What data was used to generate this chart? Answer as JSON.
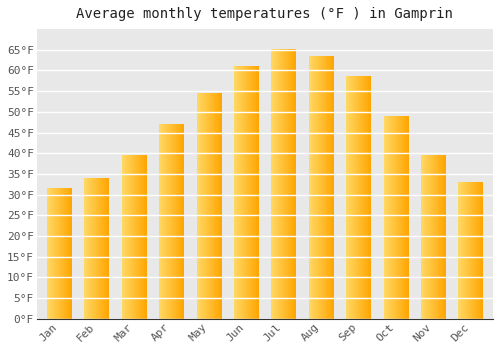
{
  "title": "Average monthly temperatures (°F ) in Gamprin",
  "months": [
    "Jan",
    "Feb",
    "Mar",
    "Apr",
    "May",
    "Jun",
    "Jul",
    "Aug",
    "Sep",
    "Oct",
    "Nov",
    "Dec"
  ],
  "values": [
    31.5,
    34.0,
    39.5,
    47.0,
    54.5,
    61.0,
    65.0,
    63.5,
    58.5,
    49.0,
    39.5,
    33.0
  ],
  "bar_color_left": "#FFD966",
  "bar_color_right": "#FFA500",
  "ylim": [
    0,
    70
  ],
  "yticks": [
    0,
    5,
    10,
    15,
    20,
    25,
    30,
    35,
    40,
    45,
    50,
    55,
    60,
    65
  ],
  "ytick_labels": [
    "0°F",
    "5°F",
    "10°F",
    "15°F",
    "20°F",
    "25°F",
    "30°F",
    "35°F",
    "40°F",
    "45°F",
    "50°F",
    "55°F",
    "60°F",
    "65°F"
  ],
  "plot_bg_color": "#e8e8e8",
  "fig_bg_color": "#ffffff",
  "grid_color": "#ffffff",
  "title_fontsize": 10,
  "tick_fontsize": 8,
  "bar_width": 0.65,
  "font_family": "monospace",
  "tick_color": "#555555",
  "spine_color": "#333333"
}
